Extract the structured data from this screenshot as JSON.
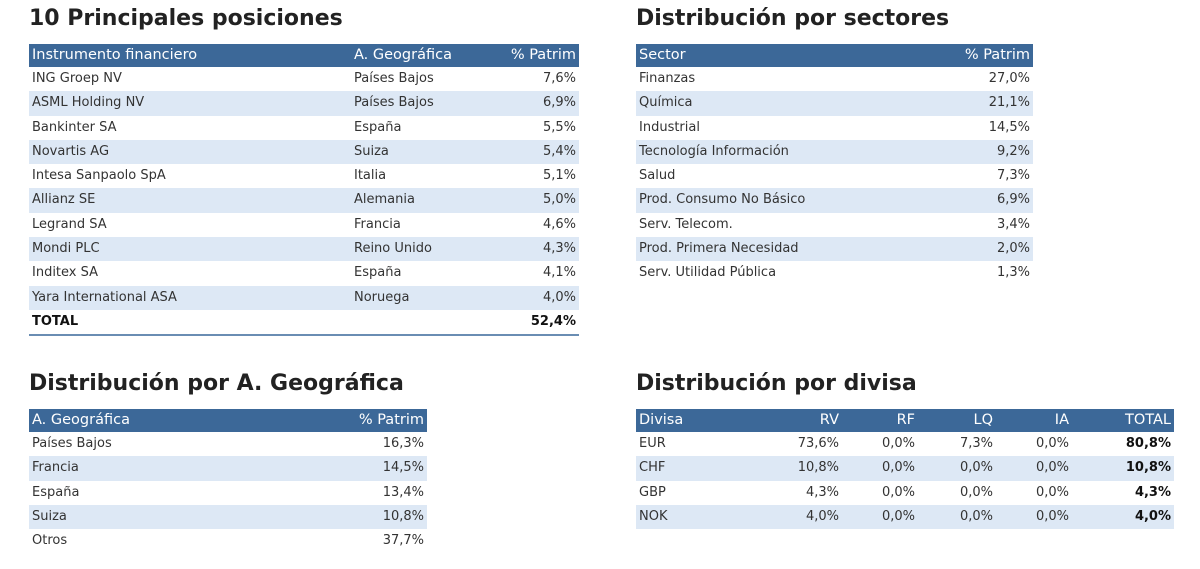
{
  "top_positions": {
    "title": "10 Principales posiciones",
    "headers": [
      "Instrumento financiero",
      "A. Geográfica",
      "% Patrim"
    ],
    "rows": [
      {
        "name": "ING Groep NV",
        "geo": "Países Bajos",
        "pct": "7,6%"
      },
      {
        "name": "ASML Holding NV",
        "geo": "Países Bajos",
        "pct": "6,9%"
      },
      {
        "name": "Bankinter SA",
        "geo": "España",
        "pct": "5,5%"
      },
      {
        "name": "Novartis AG",
        "geo": "Suiza",
        "pct": "5,4%"
      },
      {
        "name": "Intesa Sanpaolo SpA",
        "geo": "Italia",
        "pct": "5,1%"
      },
      {
        "name": "Allianz SE",
        "geo": "Alemania",
        "pct": "5,0%"
      },
      {
        "name": "Legrand SA",
        "geo": "Francia",
        "pct": "4,6%"
      },
      {
        "name": "Mondi PLC",
        "geo": "Reino Unido",
        "pct": "4,3%"
      },
      {
        "name": "Inditex SA",
        "geo": "España",
        "pct": "4,1%"
      },
      {
        "name": "Yara International ASA",
        "geo": "Noruega",
        "pct": "4,0%"
      }
    ],
    "total": {
      "label": "TOTAL",
      "pct": "52,4%"
    }
  },
  "sectors": {
    "title": "Distribución por sectores",
    "headers": [
      "Sector",
      "% Patrim"
    ],
    "rows": [
      {
        "name": "Finanzas",
        "pct": "27,0%"
      },
      {
        "name": "Química",
        "pct": "21,1%"
      },
      {
        "name": "Industrial",
        "pct": "14,5%"
      },
      {
        "name": "Tecnología Información",
        "pct": "9,2%"
      },
      {
        "name": "Salud",
        "pct": "7,3%"
      },
      {
        "name": "Prod. Consumo No Básico",
        "pct": "6,9%"
      },
      {
        "name": "Serv. Telecom.",
        "pct": "3,4%"
      },
      {
        "name": "Prod. Primera Necesidad",
        "pct": "2,0%"
      },
      {
        "name": "Serv. Utilidad Pública",
        "pct": "1,3%"
      }
    ]
  },
  "geography": {
    "title": "Distribución por A. Geográfica",
    "headers": [
      "A. Geográfica",
      "% Patrim"
    ],
    "rows": [
      {
        "name": "Países Bajos",
        "pct": "16,3%"
      },
      {
        "name": "Francia",
        "pct": "14,5%"
      },
      {
        "name": "España",
        "pct": "13,4%"
      },
      {
        "name": "Suiza",
        "pct": "10,8%"
      },
      {
        "name": "Otros",
        "pct": "37,7%"
      }
    ]
  },
  "currency": {
    "title": "Distribución por divisa",
    "headers": [
      "Divisa",
      "RV",
      "RF",
      "LQ",
      "IA",
      "TOTAL"
    ],
    "rows": [
      {
        "name": "EUR",
        "rv": "73,6%",
        "rf": "0,0%",
        "lq": "7,3%",
        "ia": "0,0%",
        "total": "80,8%"
      },
      {
        "name": "CHF",
        "rv": "10,8%",
        "rf": "0,0%",
        "lq": "0,0%",
        "ia": "0,0%",
        "total": "10,8%"
      },
      {
        "name": "GBP",
        "rv": "4,3%",
        "rf": "0,0%",
        "lq": "0,0%",
        "ia": "0,0%",
        "total": "4,3%"
      },
      {
        "name": "NOK",
        "rv": "4,0%",
        "rf": "0,0%",
        "lq": "0,0%",
        "ia": "0,0%",
        "total": "4,0%"
      }
    ]
  },
  "colors": {
    "header_bg": "#3c6898",
    "stripe_bg": "#dde8f5"
  }
}
